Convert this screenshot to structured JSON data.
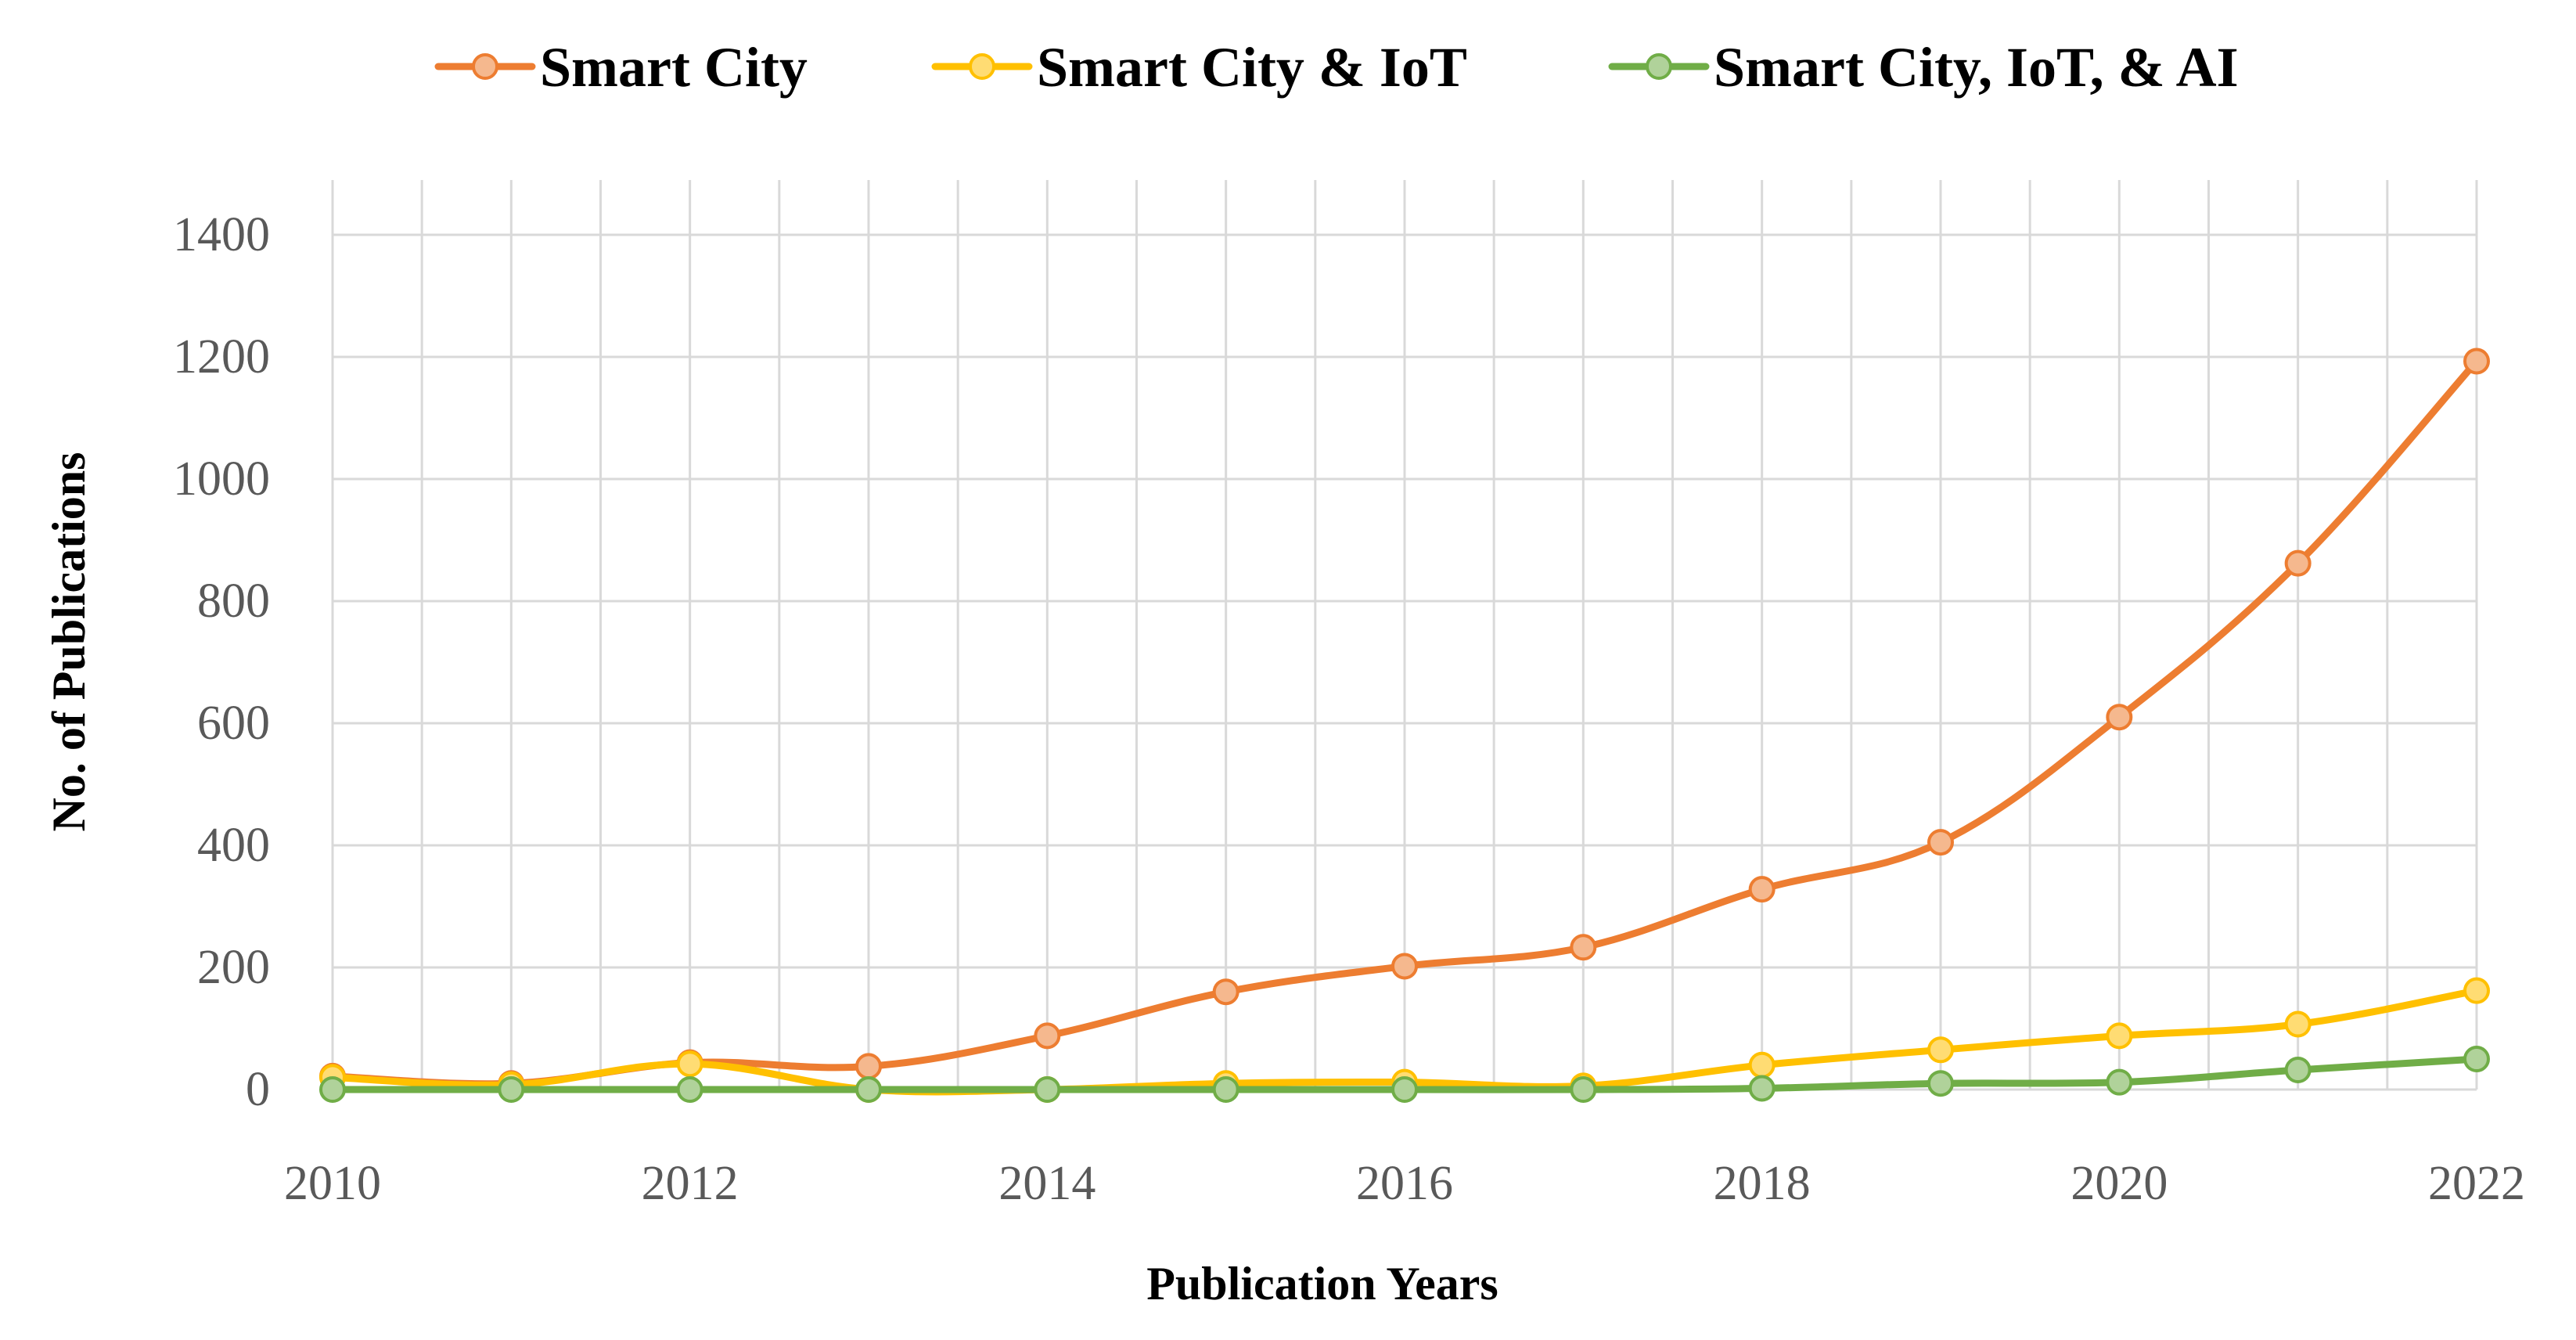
{
  "chart_data": {
    "type": "line",
    "x": [
      2010,
      2011,
      2012,
      2013,
      2014,
      2015,
      2016,
      2017,
      2018,
      2019,
      2020,
      2021,
      2022
    ],
    "xticks": [
      "2010",
      "2012",
      "2014",
      "2016",
      "2018",
      "2020",
      "2022"
    ],
    "yticks": [
      "0",
      "200",
      "400",
      "600",
      "800",
      "1000",
      "1200",
      "1400"
    ],
    "xlim": [
      2010,
      2022
    ],
    "ylim": [
      0,
      1400
    ],
    "xlabel": "Publication Years",
    "ylabel": "No. of Publications",
    "grid": true,
    "legend_position": "top",
    "series": [
      {
        "name": "Smart City",
        "color": "#ED7D31",
        "values": [
          22,
          10,
          44,
          38,
          88,
          160,
          202,
          233,
          328,
          405,
          610,
          862,
          1193
        ]
      },
      {
        "name": "Smart City & IoT",
        "color": "#FFC000",
        "values": [
          20,
          8,
          42,
          0,
          0,
          10,
          12,
          6,
          40,
          65,
          88,
          107,
          162
        ]
      },
      {
        "name": "Smart City, IoT, & AI",
        "color": "#70AD47",
        "values": [
          0,
          0,
          0,
          0,
          0,
          0,
          0,
          0,
          2,
          10,
          12,
          32,
          50
        ]
      }
    ]
  }
}
